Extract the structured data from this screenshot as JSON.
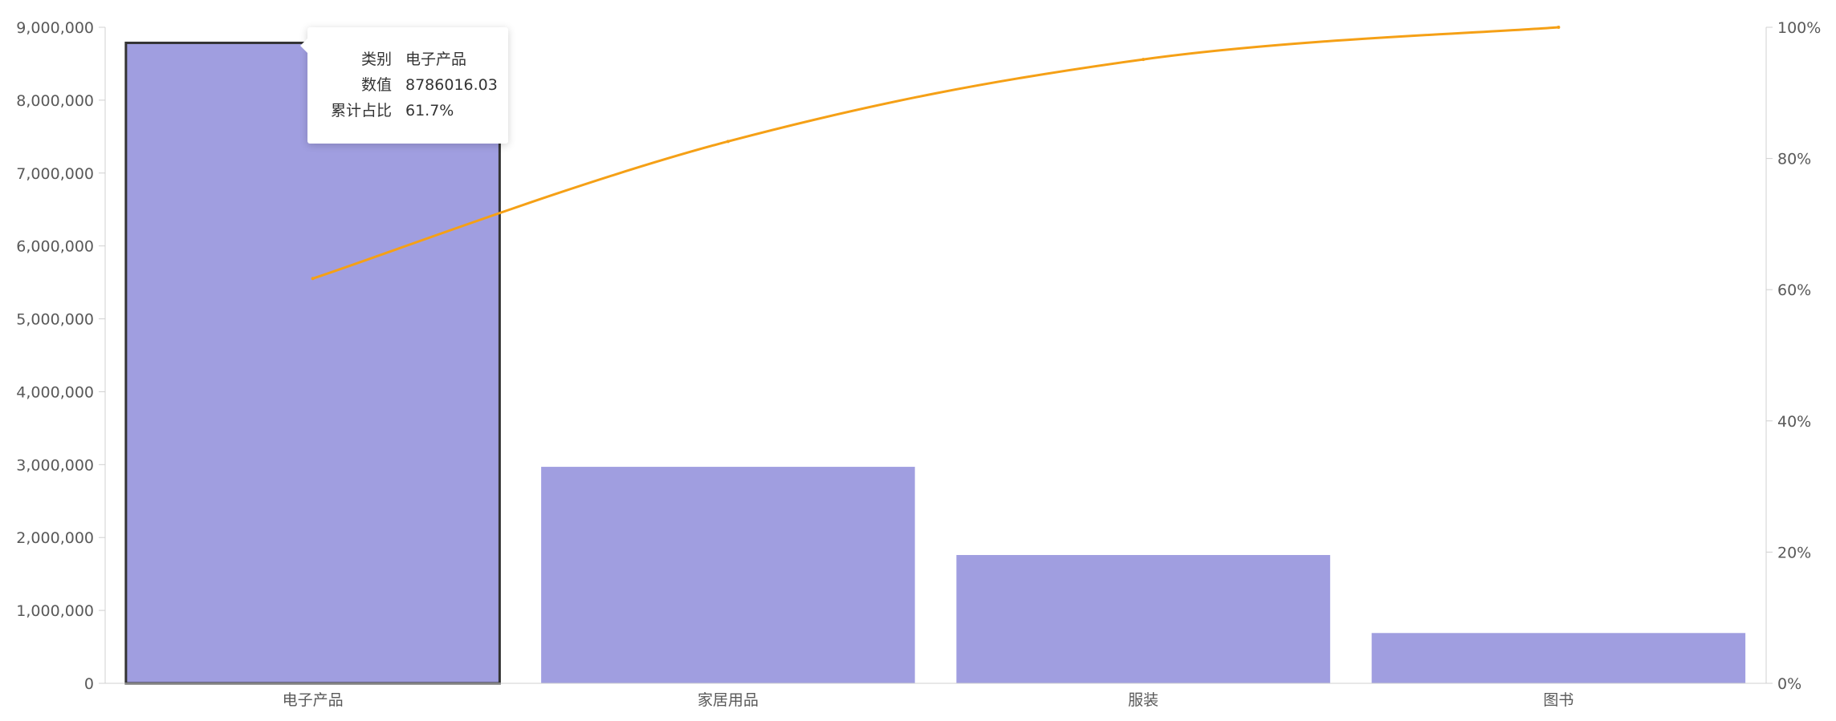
{
  "chart_data": {
    "type": "bar",
    "categories": [
      "电子产品",
      "家居用品",
      "服装",
      "图书"
    ],
    "series": [
      {
        "type": "bar",
        "values": [
          8786016.03,
          2970000,
          1760000,
          690000
        ],
        "color": "#a09ee0"
      },
      {
        "type": "line",
        "axis": "right",
        "values": [
          61.7,
          82.6,
          95.1,
          100
        ],
        "color": "#f5a016"
      }
    ],
    "yaxis_left": {
      "ylim": [
        0,
        9000000
      ],
      "ticks": [
        "0",
        "1,000,000",
        "2,000,000",
        "3,000,000",
        "4,000,000",
        "5,000,000",
        "6,000,000",
        "7,000,000",
        "8,000,000",
        "9,000,000"
      ]
    },
    "yaxis_right": {
      "ylim": [
        0,
        100
      ],
      "ticks": [
        "0%",
        "20%",
        "40%",
        "60%",
        "80%",
        "100%"
      ]
    },
    "highlighted_index": 0,
    "tooltip": {
      "rows": [
        {
          "key": "类别",
          "value": "电子产品"
        },
        {
          "key": "数值",
          "value": "8786016.03"
        },
        {
          "key": "累计占比",
          "value": "61.7%"
        }
      ]
    },
    "grid": false,
    "legend": "none"
  }
}
